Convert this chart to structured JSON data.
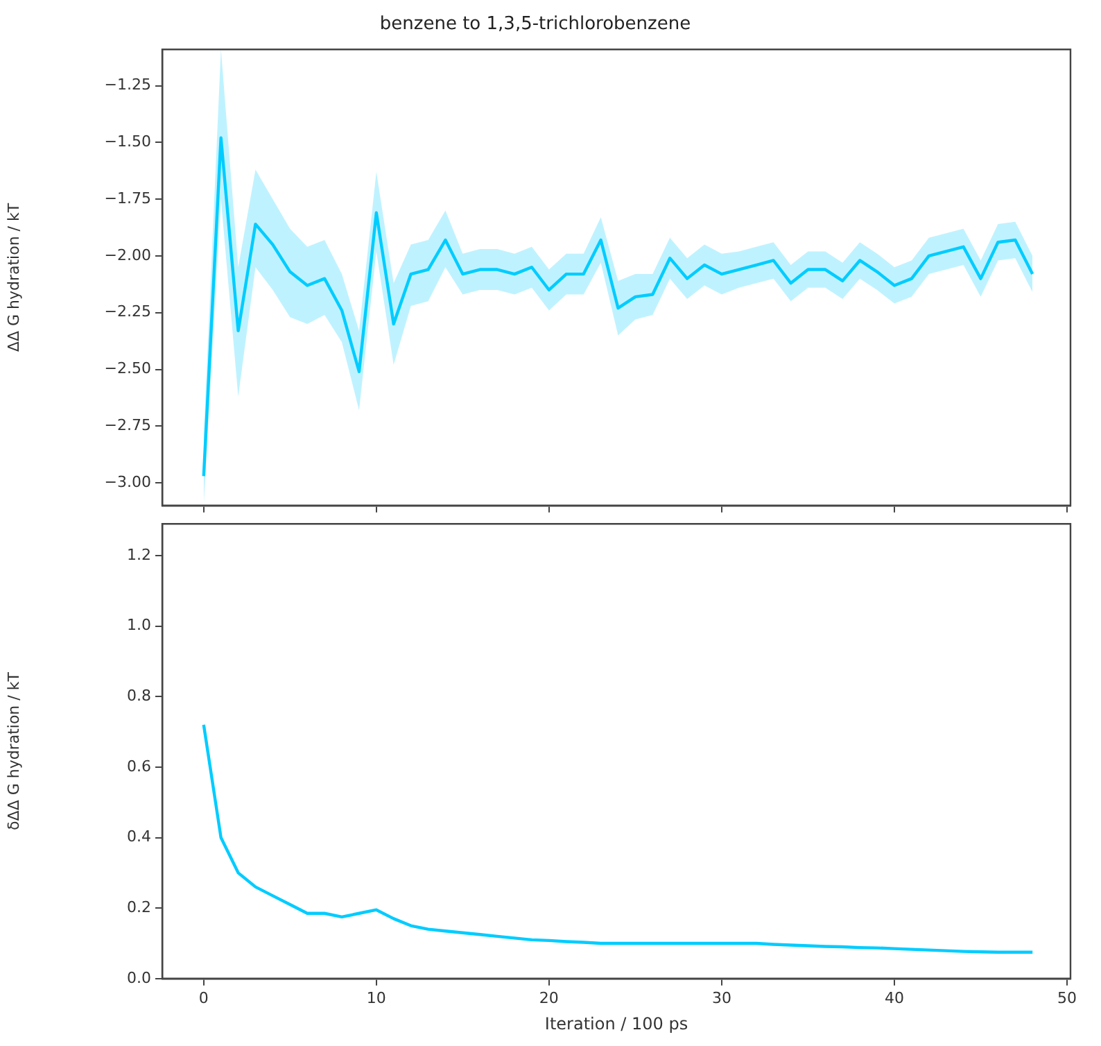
{
  "chart_data": [
    {
      "type": "line",
      "title": "benzene to 1,3,5-trichlorobenzene",
      "ylabel": "ΔΔ G hydration / kT",
      "x": [
        0,
        1,
        2,
        3,
        4,
        5,
        6,
        7,
        8,
        9,
        10,
        11,
        12,
        13,
        14,
        15,
        16,
        17,
        18,
        19,
        20,
        21,
        22,
        23,
        24,
        25,
        26,
        27,
        28,
        29,
        30,
        31,
        32,
        33,
        34,
        35,
        36,
        37,
        38,
        39,
        40,
        41,
        42,
        43,
        44,
        45,
        46,
        47,
        48
      ],
      "series": [
        {
          "color": "#00ccff",
          "values": [
            -2.97,
            -1.48,
            -2.33,
            -1.86,
            -1.95,
            -2.07,
            -2.13,
            -2.1,
            -2.24,
            -2.51,
            -1.81,
            -2.3,
            -2.08,
            -2.06,
            -1.93,
            -2.08,
            -2.06,
            -2.06,
            -2.08,
            -2.05,
            -2.15,
            -2.08,
            -2.08,
            -1.93,
            -2.23,
            -2.18,
            -2.17,
            -2.01,
            -2.1,
            -2.04,
            -2.08,
            -2.06,
            -2.04,
            -2.02,
            -2.12,
            -2.06,
            -2.06,
            -2.11,
            -2.02,
            -2.07,
            -2.13,
            -2.1,
            -2.0,
            -1.98,
            -1.96,
            -2.1,
            -1.94,
            -1.93,
            -2.08
          ],
          "lower": [
            -3.1,
            -1.75,
            -2.62,
            -2.05,
            -2.15,
            -2.27,
            -2.3,
            -2.26,
            -2.38,
            -2.68,
            -1.98,
            -2.48,
            -2.22,
            -2.2,
            -2.05,
            -2.17,
            -2.15,
            -2.15,
            -2.17,
            -2.14,
            -2.24,
            -2.17,
            -2.17,
            -2.03,
            -2.35,
            -2.28,
            -2.26,
            -2.1,
            -2.19,
            -2.13,
            -2.17,
            -2.14,
            -2.12,
            -2.1,
            -2.2,
            -2.14,
            -2.14,
            -2.19,
            -2.1,
            -2.15,
            -2.21,
            -2.18,
            -2.08,
            -2.06,
            -2.04,
            -2.18,
            -2.02,
            -2.01,
            -2.16
          ],
          "upper": [
            -2.8,
            -1.09,
            -2.05,
            -1.62,
            -1.75,
            -1.88,
            -1.96,
            -1.93,
            -2.08,
            -2.33,
            -1.63,
            -2.12,
            -1.95,
            -1.93,
            -1.8,
            -1.99,
            -1.97,
            -1.97,
            -1.99,
            -1.96,
            -2.06,
            -1.99,
            -1.99,
            -1.83,
            -2.11,
            -2.08,
            -2.08,
            -1.92,
            -2.01,
            -1.95,
            -1.99,
            -1.98,
            -1.96,
            -1.94,
            -2.04,
            -1.98,
            -1.98,
            -2.03,
            -1.94,
            -1.99,
            -2.05,
            -2.02,
            -1.92,
            -1.9,
            -1.88,
            -2.02,
            -1.86,
            -1.85,
            -2.0
          ]
        }
      ],
      "xlim": [
        -2.4,
        50.2
      ],
      "xticks": [
        0,
        10,
        20,
        30,
        40,
        50
      ],
      "ylim": [
        -3.1,
        -1.09
      ],
      "yticks": [
        {
          "value": -3.0,
          "label": "−3.00"
        },
        {
          "value": -2.75,
          "label": "−2.75"
        },
        {
          "value": -2.5,
          "label": "−2.50"
        },
        {
          "value": -2.25,
          "label": "−2.25"
        },
        {
          "value": -2.0,
          "label": "−2.00"
        },
        {
          "value": -1.75,
          "label": "−1.75"
        },
        {
          "value": -1.5,
          "label": "−1.50"
        },
        {
          "value": -1.25,
          "label": "−1.25"
        }
      ],
      "tick_labels": "y"
    },
    {
      "type": "line",
      "xlabel": "Iteration / 100 ps",
      "ylabel": "δΔΔ G hydration / kT",
      "x": [
        0,
        1,
        2,
        3,
        4,
        5,
        6,
        7,
        8,
        9,
        10,
        11,
        12,
        13,
        14,
        15,
        16,
        17,
        18,
        19,
        20,
        21,
        22,
        23,
        24,
        25,
        26,
        27,
        28,
        29,
        30,
        31,
        32,
        33,
        34,
        35,
        36,
        37,
        38,
        39,
        40,
        41,
        42,
        43,
        44,
        45,
        46,
        47,
        48
      ],
      "series": [
        {
          "color": "#00ccff",
          "values": [
            0.72,
            0.4,
            0.3,
            0.26,
            0.235,
            0.21,
            0.185,
            0.185,
            0.175,
            0.185,
            0.195,
            0.17,
            0.15,
            0.14,
            0.135,
            0.13,
            0.125,
            0.12,
            0.115,
            0.11,
            0.108,
            0.105,
            0.103,
            0.1,
            0.1,
            0.1,
            0.1,
            0.1,
            0.1,
            0.1,
            0.1,
            0.1,
            0.1,
            0.097,
            0.095,
            0.093,
            0.091,
            0.09,
            0.088,
            0.087,
            0.085,
            0.083,
            0.081,
            0.079,
            0.077,
            0.076,
            0.075,
            0.075,
            0.075
          ]
        }
      ],
      "xlim": [
        -2.4,
        50.2
      ],
      "xticks": [
        0,
        10,
        20,
        30,
        40,
        50
      ],
      "ylim": [
        0,
        1.29
      ],
      "yticks": [
        {
          "value": 0,
          "label": "0.0"
        },
        {
          "value": 0.2,
          "label": "0.2"
        },
        {
          "value": 0.4,
          "label": "0.4"
        },
        {
          "value": 0.6,
          "label": "0.6"
        },
        {
          "value": 0.8,
          "label": "0.8"
        },
        {
          "value": 1.0,
          "label": "1.0"
        },
        {
          "value": 1.2,
          "label": "1.2"
        }
      ]
    }
  ]
}
